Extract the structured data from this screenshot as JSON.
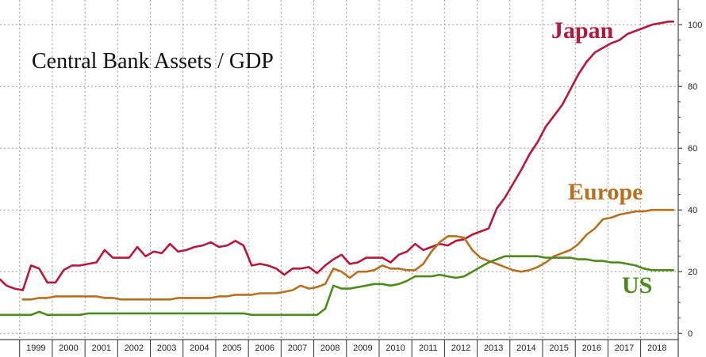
{
  "chart_data": {
    "type": "line",
    "title": "Central Bank Assets / GDP",
    "xlabel": "",
    "ylabel": "",
    "xlim": [
      1998.4,
      2019.15
    ],
    "ylim": [
      -2,
      108
    ],
    "x_ticks": [
      "1999",
      "2000",
      "2001",
      "2002",
      "2003",
      "2004",
      "2005",
      "2006",
      "2007",
      "2008",
      "2009",
      "2010",
      "2011",
      "2012",
      "2013",
      "2014",
      "2015",
      "2016",
      "2017",
      "2018"
    ],
    "y_ticks": [
      0,
      20,
      40,
      60,
      80,
      100
    ],
    "grid": true,
    "y_axis_position": "right",
    "series": [
      {
        "name": "Japan",
        "color": "#b5183c",
        "x": [
          1998.4,
          1998.6,
          1998.85,
          1999.1,
          1999.35,
          1999.6,
          1999.85,
          2000.1,
          2000.35,
          2000.6,
          2000.85,
          2001.1,
          2001.35,
          2001.6,
          2001.85,
          2002.1,
          2002.35,
          2002.6,
          2002.85,
          2003.1,
          2003.35,
          2003.6,
          2003.85,
          2004.1,
          2004.35,
          2004.6,
          2004.85,
          2005.1,
          2005.35,
          2005.6,
          2005.85,
          2006.1,
          2006.35,
          2006.6,
          2006.85,
          2007.1,
          2007.35,
          2007.6,
          2007.85,
          2008.1,
          2008.35,
          2008.6,
          2008.85,
          2009.1,
          2009.35,
          2009.6,
          2009.85,
          2010.1,
          2010.35,
          2010.6,
          2010.85,
          2011.1,
          2011.35,
          2011.6,
          2011.85,
          2012.1,
          2012.35,
          2012.6,
          2012.85,
          2013.1,
          2013.35,
          2013.6,
          2013.85,
          2014.1,
          2014.35,
          2014.6,
          2014.85,
          2015.1,
          2015.35,
          2015.6,
          2015.85,
          2016.1,
          2016.35,
          2016.6,
          2016.85,
          2017.1,
          2017.35,
          2017.6,
          2017.85,
          2018.1,
          2018.35,
          2018.6,
          2018.85,
          2019.0
        ],
        "values": [
          17.5,
          15.5,
          14.5,
          14,
          22,
          21,
          16.5,
          16.5,
          20.5,
          22,
          22,
          22.5,
          23,
          27,
          24.5,
          24.5,
          24.5,
          28,
          25,
          26.5,
          26,
          29,
          26.5,
          27,
          28,
          28.5,
          29.5,
          28,
          28.5,
          30,
          28.5,
          22,
          22.5,
          22,
          21,
          19,
          21,
          21,
          21.5,
          19.5,
          22,
          24,
          25.5,
          22.5,
          23,
          24.5,
          24.5,
          24.5,
          23,
          25.5,
          26.5,
          29,
          27,
          28,
          29,
          28.5,
          30,
          30.5,
          32,
          33,
          34,
          40.5,
          44,
          48.5,
          53,
          58,
          62,
          67,
          70.5,
          74,
          79,
          84,
          88,
          91,
          92.5,
          94,
          95,
          97,
          98,
          99,
          100,
          100.5,
          101,
          101
        ]
      },
      {
        "name": "Europe",
        "color": "#b86f1f",
        "x": [
          1998.4,
          1998.6,
          1998.85,
          1999.1,
          1999.35,
          1999.6,
          1999.85,
          2000.1,
          2000.35,
          2000.6,
          2000.85,
          2001.1,
          2001.35,
          2001.6,
          2001.85,
          2002.1,
          2002.35,
          2002.6,
          2002.85,
          2003.1,
          2003.35,
          2003.6,
          2003.85,
          2004.1,
          2004.35,
          2004.6,
          2004.85,
          2005.1,
          2005.35,
          2005.6,
          2005.85,
          2006.1,
          2006.35,
          2006.6,
          2006.85,
          2007.1,
          2007.35,
          2007.6,
          2007.85,
          2008.1,
          2008.35,
          2008.6,
          2008.85,
          2009.1,
          2009.35,
          2009.6,
          2009.85,
          2010.1,
          2010.35,
          2010.6,
          2010.85,
          2011.1,
          2011.35,
          2011.6,
          2011.85,
          2012.1,
          2012.35,
          2012.6,
          2012.85,
          2013.1,
          2013.35,
          2013.6,
          2013.85,
          2014.1,
          2014.35,
          2014.6,
          2014.85,
          2015.1,
          2015.35,
          2015.6,
          2015.85,
          2016.1,
          2016.35,
          2016.6,
          2016.85,
          2017.1,
          2017.35,
          2017.6,
          2017.85,
          2018.1,
          2018.35,
          2018.6,
          2018.85,
          2019.0
        ],
        "values": [
          null,
          null,
          null,
          11,
          11,
          11.5,
          11.5,
          12,
          12,
          12,
          12,
          12,
          12,
          11.5,
          11.5,
          11,
          11,
          11,
          11,
          11,
          11,
          11,
          11.5,
          11.5,
          11.5,
          11.5,
          11.5,
          12,
          12,
          12.5,
          12.5,
          12.5,
          13,
          13,
          13,
          13.5,
          14,
          15.5,
          14.5,
          15,
          16,
          21,
          20,
          18,
          20,
          20,
          20.5,
          22,
          21,
          21,
          20.5,
          20.5,
          22.5,
          26.5,
          29.5,
          31.5,
          31.5,
          31,
          27,
          24.5,
          23.5,
          22.5,
          21.5,
          20.5,
          20,
          20.5,
          21.5,
          23,
          25,
          26,
          27,
          29,
          32,
          34,
          37,
          37.5,
          38.5,
          39,
          39.5,
          39.5,
          40,
          40,
          40,
          40
        ]
      },
      {
        "name": "US",
        "color": "#4c8a1b",
        "x": [
          1998.4,
          1998.6,
          1998.85,
          1999.1,
          1999.35,
          1999.6,
          1999.85,
          2000.1,
          2000.35,
          2000.6,
          2000.85,
          2001.1,
          2001.35,
          2001.6,
          2001.85,
          2002.1,
          2002.35,
          2002.6,
          2002.85,
          2003.1,
          2003.35,
          2003.6,
          2003.85,
          2004.1,
          2004.35,
          2004.6,
          2004.85,
          2005.1,
          2005.35,
          2005.6,
          2005.85,
          2006.1,
          2006.35,
          2006.6,
          2006.85,
          2007.1,
          2007.35,
          2007.6,
          2007.85,
          2008.1,
          2008.35,
          2008.6,
          2008.85,
          2009.1,
          2009.35,
          2009.6,
          2009.85,
          2010.1,
          2010.35,
          2010.6,
          2010.85,
          2011.1,
          2011.35,
          2011.6,
          2011.85,
          2012.1,
          2012.35,
          2012.6,
          2012.85,
          2013.1,
          2013.35,
          2013.6,
          2013.85,
          2014.1,
          2014.35,
          2014.6,
          2014.85,
          2015.1,
          2015.35,
          2015.6,
          2015.85,
          2016.1,
          2016.35,
          2016.6,
          2016.85,
          2017.1,
          2017.35,
          2017.6,
          2017.85,
          2018.1,
          2018.35,
          2018.6,
          2018.85,
          2019.0
        ],
        "values": [
          6,
          6,
          6,
          6,
          6,
          7,
          6,
          6,
          6,
          6,
          6,
          6.5,
          6.5,
          6.5,
          6.5,
          6.5,
          6.5,
          6.5,
          6.5,
          6.5,
          6.5,
          6.5,
          6.5,
          6.5,
          6.5,
          6.5,
          6.5,
          6.5,
          6.5,
          6.5,
          6.5,
          6,
          6,
          6,
          6,
          6,
          6,
          6,
          6,
          6,
          8,
          15.5,
          14.5,
          14.5,
          15,
          15.5,
          16,
          16,
          15.5,
          16,
          17,
          18.5,
          18.5,
          18.5,
          19,
          18.5,
          18,
          18.5,
          20,
          21.5,
          23,
          24,
          25,
          25,
          25,
          25,
          25,
          24.5,
          24.5,
          24.5,
          24.5,
          24,
          24,
          23.5,
          23.5,
          23,
          23,
          22.5,
          22,
          21,
          20.5,
          20.5,
          20.5,
          20.5
        ]
      }
    ]
  }
}
